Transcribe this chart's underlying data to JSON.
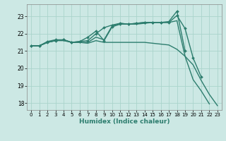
{
  "title": "",
  "xlabel": "Humidex (Indice chaleur)",
  "ylabel": "",
  "background_color": "#cce8e4",
  "grid_color": "#aad4cc",
  "line_color": "#2d7d6e",
  "xlim": [
    -0.5,
    23.5
  ],
  "ylim": [
    17.6,
    23.7
  ],
  "yticks": [
    18,
    19,
    20,
    21,
    22,
    23
  ],
  "xticks": [
    0,
    1,
    2,
    3,
    4,
    5,
    6,
    7,
    8,
    9,
    10,
    11,
    12,
    13,
    14,
    15,
    16,
    17,
    18,
    19,
    20,
    21,
    22,
    23
  ],
  "series": [
    {
      "x": [
        0,
        1,
        2,
        3,
        4,
        5,
        6,
        7,
        8,
        9,
        10,
        11,
        12,
        13,
        14,
        15,
        16,
        17,
        18,
        19,
        20,
        21,
        22,
        23
      ],
      "y": [
        21.3,
        21.3,
        21.5,
        21.6,
        21.6,
        21.5,
        21.5,
        21.45,
        21.6,
        21.5,
        21.5,
        21.5,
        21.5,
        21.5,
        21.5,
        21.45,
        21.4,
        21.35,
        21.1,
        20.7,
        20.2,
        19.3,
        18.5,
        17.85
      ],
      "marker": false,
      "linewidth": 1.0
    },
    {
      "x": [
        0,
        1,
        2,
        3,
        4,
        5,
        6,
        7,
        8,
        9,
        10,
        11,
        12,
        13,
        14,
        15,
        16,
        17,
        18,
        19,
        20,
        21
      ],
      "y": [
        21.3,
        21.3,
        21.55,
        21.65,
        21.65,
        21.5,
        21.55,
        21.6,
        22.0,
        22.35,
        22.5,
        22.6,
        22.55,
        22.6,
        22.65,
        22.65,
        22.65,
        22.65,
        23.05,
        22.3,
        20.6,
        19.5
      ],
      "marker": true,
      "linewidth": 1.0
    },
    {
      "x": [
        0,
        1,
        2,
        3,
        4,
        5,
        6,
        7,
        8,
        9,
        10,
        11,
        12,
        13,
        14,
        15,
        16,
        17,
        18,
        19
      ],
      "y": [
        21.3,
        21.3,
        21.5,
        21.6,
        21.65,
        21.5,
        21.55,
        21.8,
        22.15,
        21.6,
        22.4,
        22.55,
        22.55,
        22.6,
        22.65,
        22.65,
        22.65,
        22.7,
        23.3,
        21.0
      ],
      "marker": true,
      "linewidth": 1.0
    },
    {
      "x": [
        0,
        1,
        2,
        3,
        4,
        5,
        6,
        7,
        8,
        9,
        10,
        11,
        12,
        13,
        14,
        15,
        16,
        17,
        18,
        19,
        20,
        21,
        22
      ],
      "y": [
        21.3,
        21.3,
        21.5,
        21.6,
        21.65,
        21.5,
        21.5,
        21.5,
        21.8,
        21.65,
        22.45,
        22.6,
        22.55,
        22.55,
        22.6,
        22.65,
        22.65,
        22.65,
        22.75,
        20.7,
        19.35,
        18.7,
        17.95
      ],
      "marker": false,
      "linewidth": 1.0
    }
  ]
}
